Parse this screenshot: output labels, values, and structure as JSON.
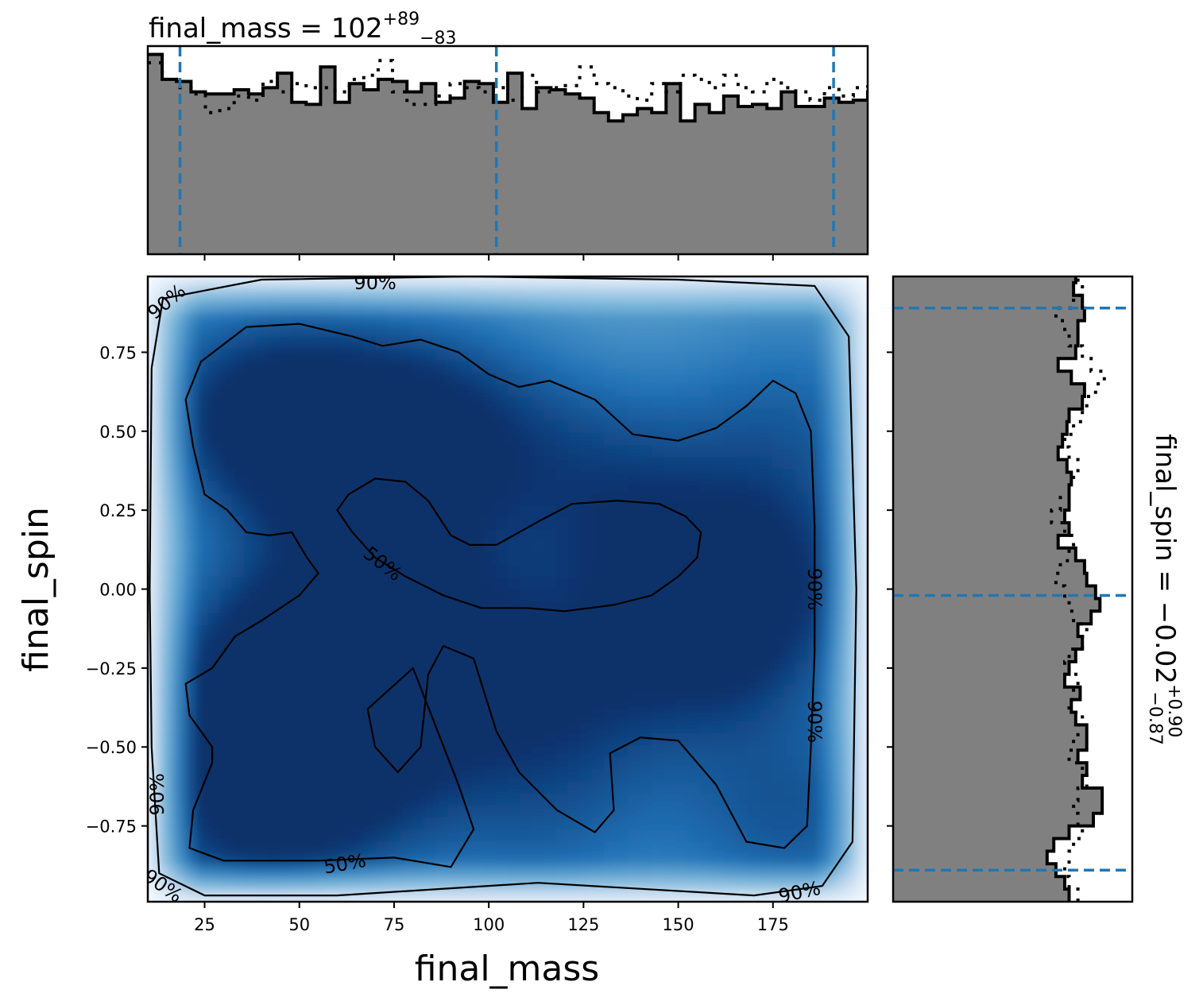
{
  "figure": {
    "background": "#ffffff",
    "colormap": [
      "#f7fbff",
      "#c6dbef",
      "#6baed6",
      "#2171b5",
      "#08306b"
    ]
  },
  "chart_data": [
    {
      "id": "final_mass-marginal",
      "type": "histogram",
      "title_base": "final_mass = 102",
      "title_sup": "+89",
      "title_sub": "−83",
      "xlim": [
        10,
        200
      ],
      "fill_color": "#808080",
      "edge_color": "#000000",
      "quantiles": [
        18.5,
        102,
        191
      ],
      "quantile_color": "#1f77b4",
      "bins_start": 10,
      "bin_width": 3.8,
      "heights": [
        0.96,
        0.84,
        0.83,
        0.78,
        0.77,
        0.77,
        0.79,
        0.77,
        0.8,
        0.87,
        0.73,
        0.72,
        0.9,
        0.73,
        0.82,
        0.79,
        0.84,
        0.83,
        0.78,
        0.82,
        0.73,
        0.75,
        0.83,
        0.82,
        0.73,
        0.87,
        0.7,
        0.8,
        0.79,
        0.77,
        0.75,
        0.68,
        0.64,
        0.67,
        0.7,
        0.68,
        0.82,
        0.64,
        0.72,
        0.68,
        0.76,
        0.71,
        0.72,
        0.7,
        0.78,
        0.71,
        0.71,
        0.75,
        0.73,
        0.74,
        0.78,
        0.7,
        0.72,
        0.8,
        0.76,
        0.77,
        0.86,
        0.73,
        0.78,
        0.9,
        0.79,
        0.93
      ],
      "heights_alt": [
        0.92,
        0.84,
        0.8,
        0.77,
        0.68,
        0.7,
        0.76,
        0.74,
        0.83,
        0.78,
        0.82,
        0.8,
        0.8,
        0.78,
        0.84,
        0.86,
        0.93,
        0.78,
        0.72,
        0.72,
        0.76,
        0.82,
        0.8,
        0.78,
        0.8,
        0.74,
        0.86,
        0.78,
        0.8,
        0.81,
        0.9,
        0.82,
        0.8,
        0.76,
        0.74,
        0.82,
        0.78,
        0.86,
        0.84,
        0.8,
        0.86,
        0.8,
        0.78,
        0.84,
        0.8,
        0.78,
        0.74,
        0.8,
        0.76,
        0.8,
        0.82,
        0.9,
        0.92,
        0.86,
        0.78,
        0.74,
        0.72,
        0.76,
        0.8,
        0.82,
        0.7,
        0.76
      ]
    },
    {
      "id": "joint-density",
      "type": "heatmap",
      "xlabel": "final_mass",
      "ylabel": "final_spin",
      "xlim": [
        10,
        200
      ],
      "ylim": [
        -0.99,
        0.99
      ],
      "xticks": [
        25,
        50,
        75,
        100,
        125,
        150,
        175
      ],
      "xtick_labels": [
        "25",
        "50",
        "75",
        "100",
        "125",
        "150",
        "175"
      ],
      "yticks": [
        -0.75,
        -0.5,
        -0.25,
        0.0,
        0.25,
        0.5,
        0.75
      ],
      "ytick_labels": [
        "−0.75",
        "−0.50",
        "−0.25",
        "0.00",
        "0.25",
        "0.50",
        "0.75"
      ],
      "density_peaks": [
        {
          "x": 38,
          "y": 0.58,
          "w": 1.0
        },
        {
          "x": 55,
          "y": 0.45,
          "w": 0.75
        },
        {
          "x": 85,
          "y": 0.55,
          "w": 0.95
        },
        {
          "x": 125,
          "y": 0.4,
          "w": 0.6
        },
        {
          "x": 75,
          "y": 0.15,
          "w": 0.6
        },
        {
          "x": 40,
          "y": -0.25,
          "w": 0.9
        },
        {
          "x": 60,
          "y": -0.25,
          "w": 1.0
        },
        {
          "x": 90,
          "y": -0.2,
          "w": 0.7
        },
        {
          "x": 160,
          "y": -0.15,
          "w": 1.05
        },
        {
          "x": 175,
          "y": 0.1,
          "w": 0.7
        },
        {
          "x": 35,
          "y": -0.72,
          "w": 1.05
        },
        {
          "x": 65,
          "y": -0.62,
          "w": 0.75
        },
        {
          "x": 120,
          "y": -0.35,
          "w": 0.7
        },
        {
          "x": 115,
          "y": -0.75,
          "w": 0.55
        },
        {
          "x": 180,
          "y": -0.72,
          "w": 0.8
        },
        {
          "x": 180,
          "y": 0.55,
          "w": 0.6
        },
        {
          "x": 140,
          "y": 0.15,
          "w": 0.5
        }
      ],
      "contour_labels": [
        "90%",
        "50%"
      ],
      "contour_color": "#000000"
    },
    {
      "id": "final_spin-marginal",
      "type": "histogram",
      "orientation": "horizontal",
      "title_base": "final_spin = −0.02",
      "title_sup": "+0.90",
      "title_sub": "−0.87",
      "ylim": [
        -0.99,
        0.99
      ],
      "fill_color": "#808080",
      "edge_color": "#000000",
      "quantiles": [
        -0.89,
        -0.02,
        0.89
      ],
      "quantile_color": "#1f77b4",
      "bins_start": -0.99,
      "bin_width": 0.04,
      "heights": [
        0.8,
        0.78,
        0.74,
        0.7,
        0.73,
        0.8,
        0.91,
        0.95,
        0.95,
        0.86,
        0.88,
        0.84,
        0.88,
        0.88,
        0.83,
        0.81,
        0.85,
        0.78,
        0.8,
        0.83,
        0.86,
        0.84,
        0.9,
        0.94,
        0.92,
        0.88,
        0.87,
        0.83,
        0.75,
        0.8,
        0.78,
        0.8,
        0.8,
        0.81,
        0.79,
        0.75,
        0.77,
        0.79,
        0.8,
        0.86,
        0.87,
        0.81,
        0.75,
        0.83,
        0.84,
        0.84,
        0.87,
        0.86,
        0.82,
        0.83,
        0.9,
        0.96,
        0.91,
        0.88,
        0.83,
        0.83,
        0.85,
        0.86,
        0.87,
        0.86,
        0.78,
        0.79,
        0.85,
        0.77,
        0.76
      ],
      "heights_alt": [
        0.84,
        0.8,
        0.78,
        0.8,
        0.82,
        0.86,
        0.84,
        0.82,
        0.84,
        0.88,
        0.86,
        0.8,
        0.82,
        0.84,
        0.86,
        0.8,
        0.82,
        0.84,
        0.78,
        0.8,
        0.86,
        0.88,
        0.82,
        0.8,
        0.78,
        0.74,
        0.76,
        0.8,
        0.82,
        0.78,
        0.72,
        0.76,
        0.8,
        0.82,
        0.84,
        0.8,
        0.78,
        0.82,
        0.86,
        0.88,
        0.92,
        0.96,
        0.9,
        0.86,
        0.8,
        0.78,
        0.74,
        0.82,
        0.86,
        0.84,
        0.9,
        0.88,
        0.82,
        0.8,
        0.86,
        0.84,
        0.8,
        0.88,
        0.92,
        0.86,
        0.82,
        0.84,
        0.86,
        0.84,
        0.82
      ]
    }
  ]
}
